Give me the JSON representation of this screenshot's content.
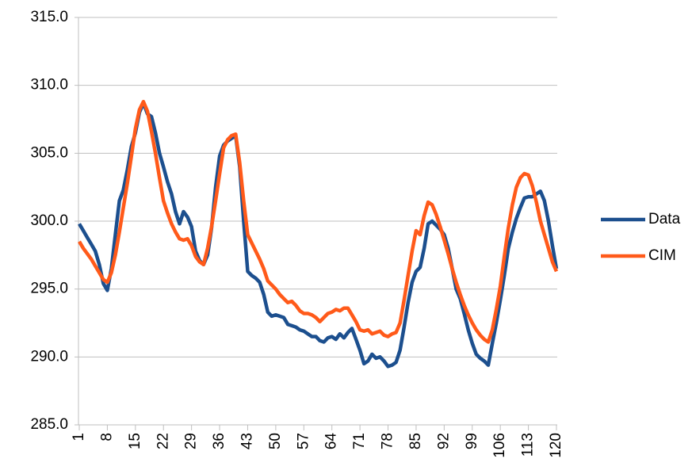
{
  "chart_data": {
    "type": "line",
    "xlim": [
      1,
      120
    ],
    "xticks": [
      1,
      8,
      15,
      22,
      29,
      36,
      43,
      50,
      57,
      64,
      71,
      78,
      85,
      92,
      99,
      106,
      113,
      120
    ],
    "ylim": [
      285,
      315
    ],
    "yticks": [
      {
        "value": 285,
        "label": "285.0"
      },
      {
        "value": 290,
        "label": "290.0"
      },
      {
        "value": 295,
        "label": "295.0"
      },
      {
        "value": 300,
        "label": "300.0"
      },
      {
        "value": 305,
        "label": "305.0"
      },
      {
        "value": 310,
        "label": "310.0"
      },
      {
        "value": 315,
        "label": "315.0"
      }
    ],
    "grid": true,
    "legend": "right",
    "x": [
      1,
      2,
      3,
      4,
      5,
      6,
      7,
      8,
      9,
      10,
      11,
      12,
      13,
      14,
      15,
      16,
      17,
      18,
      19,
      20,
      21,
      22,
      23,
      24,
      25,
      26,
      27,
      28,
      29,
      30,
      31,
      32,
      33,
      34,
      35,
      36,
      37,
      38,
      39,
      40,
      41,
      42,
      43,
      44,
      45,
      46,
      47,
      48,
      49,
      50,
      51,
      52,
      53,
      54,
      55,
      56,
      57,
      58,
      59,
      60,
      61,
      62,
      63,
      64,
      65,
      66,
      67,
      68,
      69,
      70,
      71,
      72,
      73,
      74,
      75,
      76,
      77,
      78,
      79,
      80,
      81,
      82,
      83,
      84,
      85,
      86,
      87,
      88,
      89,
      90,
      91,
      92,
      93,
      94,
      95,
      96,
      97,
      98,
      99,
      100,
      101,
      102,
      103,
      104,
      105,
      106,
      107,
      108,
      109,
      110,
      111,
      112,
      113,
      114,
      115,
      116,
      117,
      118,
      119,
      120
    ],
    "series": [
      {
        "name": "Data",
        "color": "#1c4f8e",
        "values": [
          299.8,
          299.3,
          298.8,
          298.3,
          297.8,
          296.8,
          295.4,
          294.9,
          296.5,
          299,
          301.5,
          302.3,
          303.8,
          305.5,
          306.5,
          308,
          308.7,
          307.9,
          307.7,
          306.5,
          305,
          304,
          302.9,
          302,
          300.7,
          299.8,
          300.7,
          300.3,
          299.6,
          297.8,
          297.1,
          296.8,
          297.5,
          299.5,
          302.5,
          304.8,
          305.6,
          305.9,
          306.1,
          306.3,
          304,
          300,
          296.3,
          296,
          295.8,
          295.5,
          294.6,
          293.3,
          293,
          293.1,
          293,
          292.9,
          292.4,
          292.3,
          292.2,
          292,
          291.9,
          291.7,
          291.5,
          291.5,
          291.2,
          291.1,
          291.4,
          291.5,
          291.3,
          291.7,
          291.4,
          291.8,
          292.1,
          291.3,
          290.5,
          289.5,
          289.7,
          290.2,
          289.9,
          290,
          289.7,
          289.3,
          289.4,
          289.6,
          290.5,
          292.2,
          294,
          295.5,
          296.3,
          296.6,
          298,
          299.8,
          300,
          299.7,
          299.4,
          299,
          298,
          296.5,
          295,
          294.3,
          293.2,
          292,
          291,
          290.2,
          289.9,
          289.7,
          289.4,
          291,
          292.5,
          294.2,
          296,
          298,
          299.2,
          300.2,
          301,
          301.7,
          301.8,
          301.8,
          302,
          302.2,
          301.5,
          300,
          298.2,
          296.5
        ]
      },
      {
        "name": "CIM",
        "color": "#ff5a1a",
        "values": [
          298.5,
          298,
          297.6,
          297.2,
          296.7,
          296.2,
          295.7,
          295.5,
          296.2,
          297.5,
          299.2,
          301,
          302.8,
          304.8,
          306.8,
          308.2,
          308.8,
          308.1,
          306.6,
          305,
          303.2,
          301.5,
          300.6,
          299.8,
          299.2,
          298.7,
          298.6,
          298.7,
          298.2,
          297.4,
          297,
          296.8,
          298,
          299.6,
          301.5,
          303.5,
          305.4,
          306,
          306.3,
          306.4,
          304.3,
          301.5,
          299,
          298.4,
          297.8,
          297.2,
          296.5,
          295.6,
          295.3,
          295,
          294.6,
          294.3,
          294,
          294.1,
          293.8,
          293.4,
          293.2,
          293.2,
          293.1,
          292.9,
          292.6,
          292.9,
          293.2,
          293.3,
          293.5,
          293.4,
          293.6,
          293.6,
          293.1,
          292.6,
          292,
          291.9,
          292,
          291.7,
          291.8,
          291.9,
          291.6,
          291.5,
          291.7,
          291.8,
          292.5,
          294.2,
          296,
          297.8,
          299.3,
          299,
          300.4,
          301.4,
          301.2,
          300.5,
          299.6,
          298.6,
          297.6,
          296.5,
          295.5,
          294.6,
          293.8,
          293.1,
          292.5,
          292,
          291.6,
          291.3,
          291.1,
          292,
          293.5,
          295.2,
          297.4,
          299.5,
          301.2,
          302.5,
          303.2,
          303.5,
          303.4,
          302.6,
          301.4,
          300,
          299,
          298,
          297,
          296.3
        ]
      }
    ]
  }
}
